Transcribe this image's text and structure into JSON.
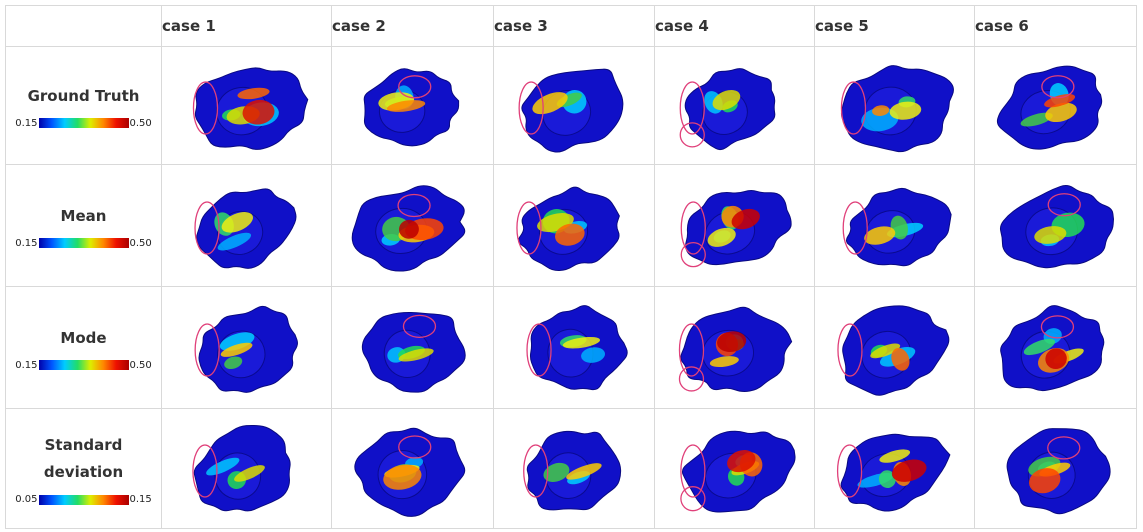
{
  "columns": [
    "case 1",
    "case 2",
    "case 3",
    "case 4",
    "case 5",
    "case 6"
  ],
  "rows": [
    {
      "label_lines": [
        "Ground Truth"
      ],
      "scale_min": "0.15",
      "scale_max": "0.50"
    },
    {
      "label_lines": [
        "Mean"
      ],
      "scale_min": "0.15",
      "scale_max": "0.50"
    },
    {
      "label_lines": [
        "Mode"
      ],
      "scale_min": "0.15",
      "scale_max": "0.50"
    },
    {
      "label_lines": [
        "Standard",
        "deviation"
      ],
      "scale_min": "0.05",
      "scale_max": "0.15"
    }
  ],
  "colors": {
    "base_blue": "#1010c8",
    "marker_outline": "#e0407a"
  }
}
